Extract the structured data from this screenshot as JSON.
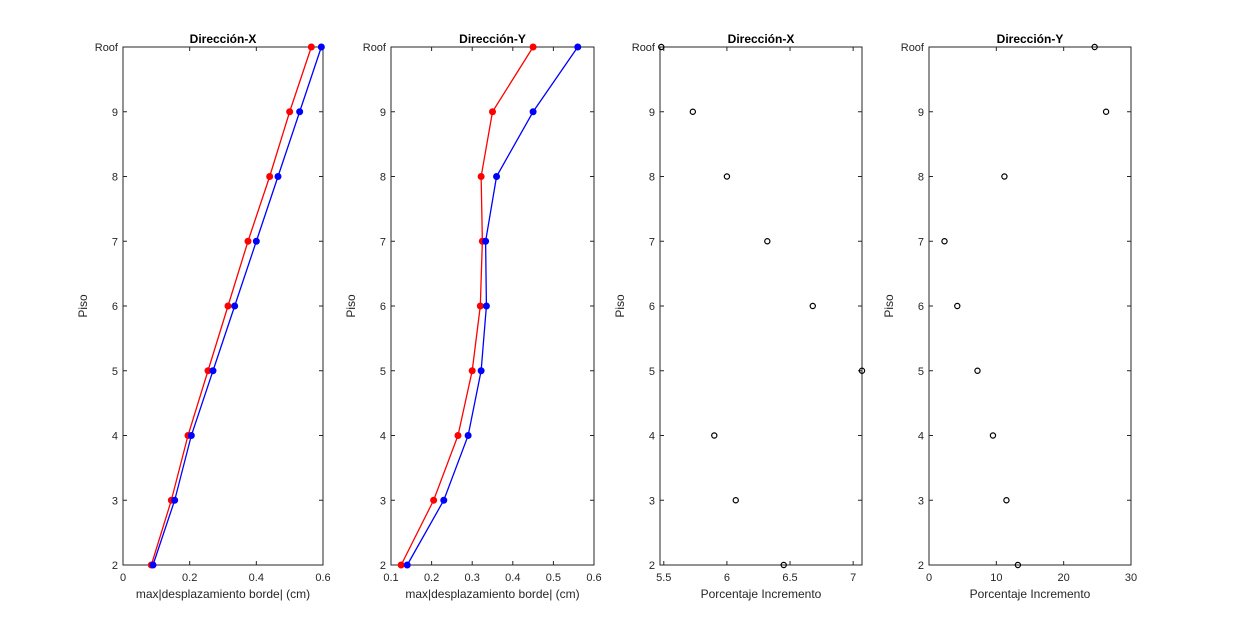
{
  "y_levels": [
    "2",
    "3",
    "4",
    "5",
    "6",
    "7",
    "8",
    "9",
    "Roof"
  ],
  "chart_data": [
    {
      "type": "line",
      "title": "Dirección-X",
      "xlabel": "max|desplazamiento borde| (cm)",
      "ylabel": "Piso",
      "xlim": [
        0,
        0.6
      ],
      "xticks": [
        "0",
        "0.2",
        "0.4",
        "0.6"
      ],
      "y": [
        "2",
        "3",
        "4",
        "5",
        "6",
        "7",
        "8",
        "9",
        "Roof"
      ],
      "series": [
        {
          "color": "#ff0000",
          "values": [
            0.085,
            0.145,
            0.195,
            0.255,
            0.315,
            0.375,
            0.44,
            0.5,
            0.565
          ]
        },
        {
          "color": "#0000ff",
          "values": [
            0.09,
            0.155,
            0.205,
            0.27,
            0.335,
            0.4,
            0.465,
            0.53,
            0.595
          ]
        }
      ]
    },
    {
      "type": "line",
      "title": "Dirección-Y",
      "xlabel": "max|desplazamiento borde| (cm)",
      "ylabel": "Piso",
      "xlim": [
        0.1,
        0.6
      ],
      "xticks": [
        "0.1",
        "0.2",
        "0.3",
        "0.4",
        "0.5",
        "0.6"
      ],
      "y": [
        "2",
        "3",
        "4",
        "5",
        "6",
        "7",
        "8",
        "9",
        "Roof"
      ],
      "series": [
        {
          "color": "#ff0000",
          "values": [
            0.125,
            0.205,
            0.265,
            0.3,
            0.32,
            0.325,
            0.322,
            0.35,
            0.45
          ]
        },
        {
          "color": "#0000ff",
          "values": [
            0.14,
            0.23,
            0.29,
            0.322,
            0.335,
            0.333,
            0.36,
            0.45,
            0.56
          ]
        }
      ]
    },
    {
      "type": "scatter",
      "title": "Dirección-X",
      "xlabel": "Porcentaje Incremento",
      "ylabel": "Piso",
      "xlim": [
        5.47,
        7.07
      ],
      "xticks": [
        "5.5",
        "6",
        "6.5",
        "7"
      ],
      "xtick_values": [
        5.5,
        6,
        6.5,
        7
      ],
      "y": [
        "2",
        "3",
        "4",
        "5",
        "6",
        "7",
        "8",
        "9",
        "Roof"
      ],
      "series": [
        {
          "color": "#000000",
          "values": [
            6.45,
            6.07,
            5.9,
            7.07,
            6.68,
            6.32,
            6.0,
            5.73,
            5.48
          ]
        }
      ]
    },
    {
      "type": "scatter",
      "title": "Dirección-Y",
      "xlabel": "Porcentaje Incremento",
      "ylabel": "Piso",
      "xlim": [
        0,
        30
      ],
      "xticks": [
        "0",
        "10",
        "20",
        "30"
      ],
      "xtick_values": [
        0,
        10,
        20,
        30
      ],
      "y": [
        "2",
        "3",
        "4",
        "5",
        "6",
        "7",
        "8",
        "9",
        "Roof"
      ],
      "series": [
        {
          "color": "#000000",
          "values": [
            13.2,
            11.5,
            9.5,
            7.2,
            4.2,
            2.3,
            11.2,
            26.3,
            24.6
          ]
        }
      ]
    }
  ]
}
